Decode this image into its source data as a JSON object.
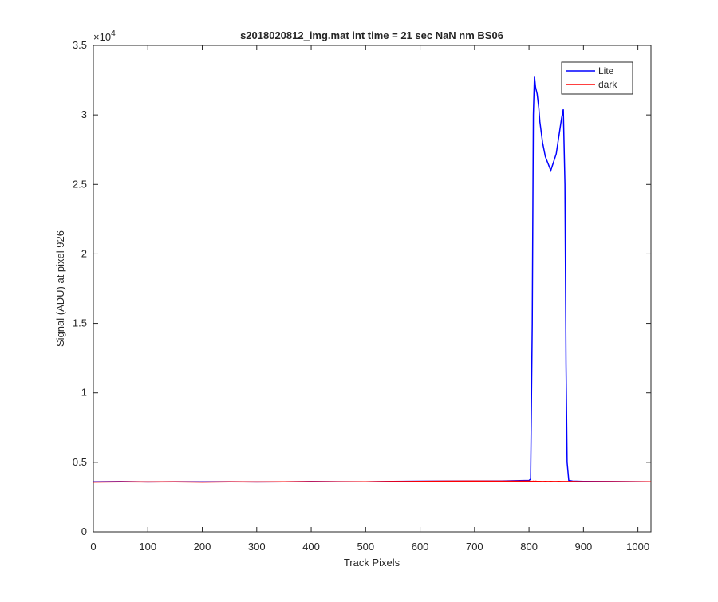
{
  "chart_data": {
    "type": "line",
    "title": "s2018020812_img.mat int time = 21 sec  NaN nm BS06",
    "x_label": "Track Pixels",
    "y_label": "Signal (ADU) at pixel 926",
    "y_exponent_base": "×10",
    "y_exponent": "4",
    "x": [
      0,
      50,
      100,
      150,
      200,
      250,
      300,
      350,
      400,
      450,
      500,
      550,
      600,
      650,
      700,
      750,
      800,
      803,
      806,
      808,
      810,
      812,
      815,
      818,
      820,
      825,
      830,
      835,
      840,
      845,
      850,
      855,
      860,
      863,
      866,
      868,
      870,
      873,
      880,
      900,
      950,
      1000,
      1024
    ],
    "series": [
      {
        "name": "Lite",
        "color": "#0000ff",
        "values": [
          0.36,
          0.362,
          0.359,
          0.361,
          0.36,
          0.361,
          0.359,
          0.36,
          0.362,
          0.361,
          0.36,
          0.363,
          0.364,
          0.365,
          0.366,
          0.366,
          0.37,
          0.38,
          1.5,
          3.0,
          3.28,
          3.2,
          3.15,
          3.05,
          2.95,
          2.8,
          2.7,
          2.65,
          2.6,
          2.66,
          2.72,
          2.85,
          2.98,
          3.04,
          2.5,
          1.2,
          0.5,
          0.37,
          0.365,
          0.363,
          0.362,
          0.361,
          0.36
        ]
      },
      {
        "name": "dark",
        "color": "#ff0000",
        "values": [
          0.358,
          0.36,
          0.359,
          0.36,
          0.358,
          0.36,
          0.359,
          0.36,
          0.361,
          0.36,
          0.36,
          0.362,
          0.363,
          0.364,
          0.365,
          0.364,
          0.365,
          0.364,
          0.363,
          0.364,
          0.363,
          0.364,
          0.363,
          0.363,
          0.363,
          0.362,
          0.363,
          0.362,
          0.363,
          0.362,
          0.362,
          0.363,
          0.362,
          0.362,
          0.362,
          0.362,
          0.362,
          0.362,
          0.362,
          0.361,
          0.361,
          0.36,
          0.36
        ]
      }
    ],
    "xlim": [
      0,
      1024
    ],
    "ylim": [
      0,
      3.5
    ],
    "xticks": [
      0,
      100,
      200,
      300,
      400,
      500,
      600,
      700,
      800,
      900,
      1000
    ],
    "yticks": [
      0,
      0.5,
      1,
      1.5,
      2,
      2.5,
      3,
      3.5
    ],
    "legend": "northeast"
  }
}
